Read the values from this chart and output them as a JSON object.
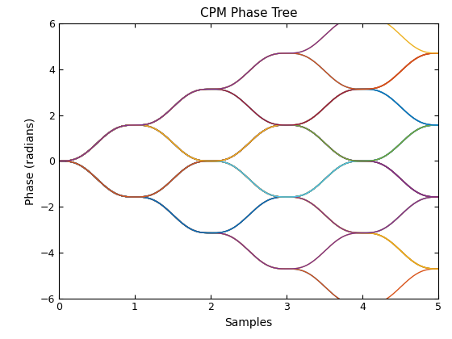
{
  "title": "CPM Phase Tree",
  "xlabel": "Samples",
  "ylabel": "Phase (radians)",
  "xlim": [
    0,
    5
  ],
  "ylim": [
    -6,
    6
  ],
  "xticks": [
    0,
    1,
    2,
    3,
    4,
    5
  ],
  "yticks": [
    -6,
    -4,
    -2,
    0,
    2,
    4,
    6
  ],
  "modulation_index": 0.5,
  "num_symbols": 5,
  "samples_per_symbol": 200,
  "background_color": "#ffffff",
  "title_fontsize": 11,
  "label_fontsize": 10,
  "figsize": [
    5.6,
    4.2
  ],
  "dpi": 100,
  "linewidth": 1.0,
  "matlab_colors": [
    "#0072BD",
    "#D95319",
    "#EDB120",
    "#7E2F8E",
    "#77AC30",
    "#4DBEEE",
    "#A2142F"
  ]
}
